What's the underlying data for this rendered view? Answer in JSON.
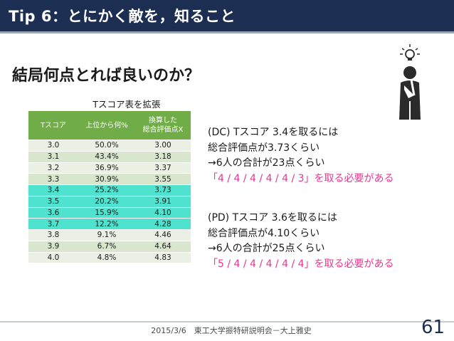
{
  "slide": {
    "title": "Tip 6：とにかく敵を，知ること",
    "heading": "結局何点とれば良いのか？",
    "table_caption": "Tスコア表を拡張",
    "page_number": "61",
    "footer": "2015/3/6　東工大学振特研説明会－大上雅史"
  },
  "table": {
    "headers": [
      "Tスコア",
      "上位から何%",
      "換算した",
      "総合評価点X"
    ],
    "rows": [
      {
        "t": "3.0",
        "pct": "50.0%",
        "score": "3.00"
      },
      {
        "t": "3.1",
        "pct": "43.4%",
        "score": "3.18"
      },
      {
        "t": "3.2",
        "pct": "36.9%",
        "score": "3.37"
      },
      {
        "t": "3.3",
        "pct": "30.9%",
        "score": "3.55"
      },
      {
        "t": "3.4",
        "pct": "25.2%",
        "score": "3.73"
      },
      {
        "t": "3.5",
        "pct": "20.2%",
        "score": "3.91"
      },
      {
        "t": "3.6",
        "pct": "15.9%",
        "score": "4.10"
      },
      {
        "t": "3.7",
        "pct": "12.2%",
        "score": "4.28"
      },
      {
        "t": "3.8",
        "pct": "9.1%",
        "score": "4.46"
      },
      {
        "t": "3.9",
        "pct": "6.7%",
        "score": "4.64"
      },
      {
        "t": "4.0",
        "pct": "4.8%",
        "score": "4.83"
      }
    ]
  },
  "notes": {
    "dc": {
      "line1": "(DC) Tスコア 3.4を取るには",
      "line2": "総合評価点が3.73くらい",
      "line3": "→6人の合計が23点くらい",
      "line4": "「4 / 4 / 4 / 4 / 4 / 3」を取る必要がある"
    },
    "pd": {
      "line1": "(PD) Tスコア 3.6を取るには",
      "line2": "総合評価点が4.10くらい",
      "line3": "→6人の合計が25点くらい",
      "line4": "「5 / 4 / 4 / 4 / 4 / 4」を取る必要がある"
    }
  },
  "colors": {
    "title_bar": "#1c2f52",
    "table_header": "#70ad47",
    "highlight_rows": "#4ee2cf",
    "emphasis_text": "#e8358e"
  },
  "icons": [
    "thinking-person-icon",
    "lightbulb-icon"
  ]
}
